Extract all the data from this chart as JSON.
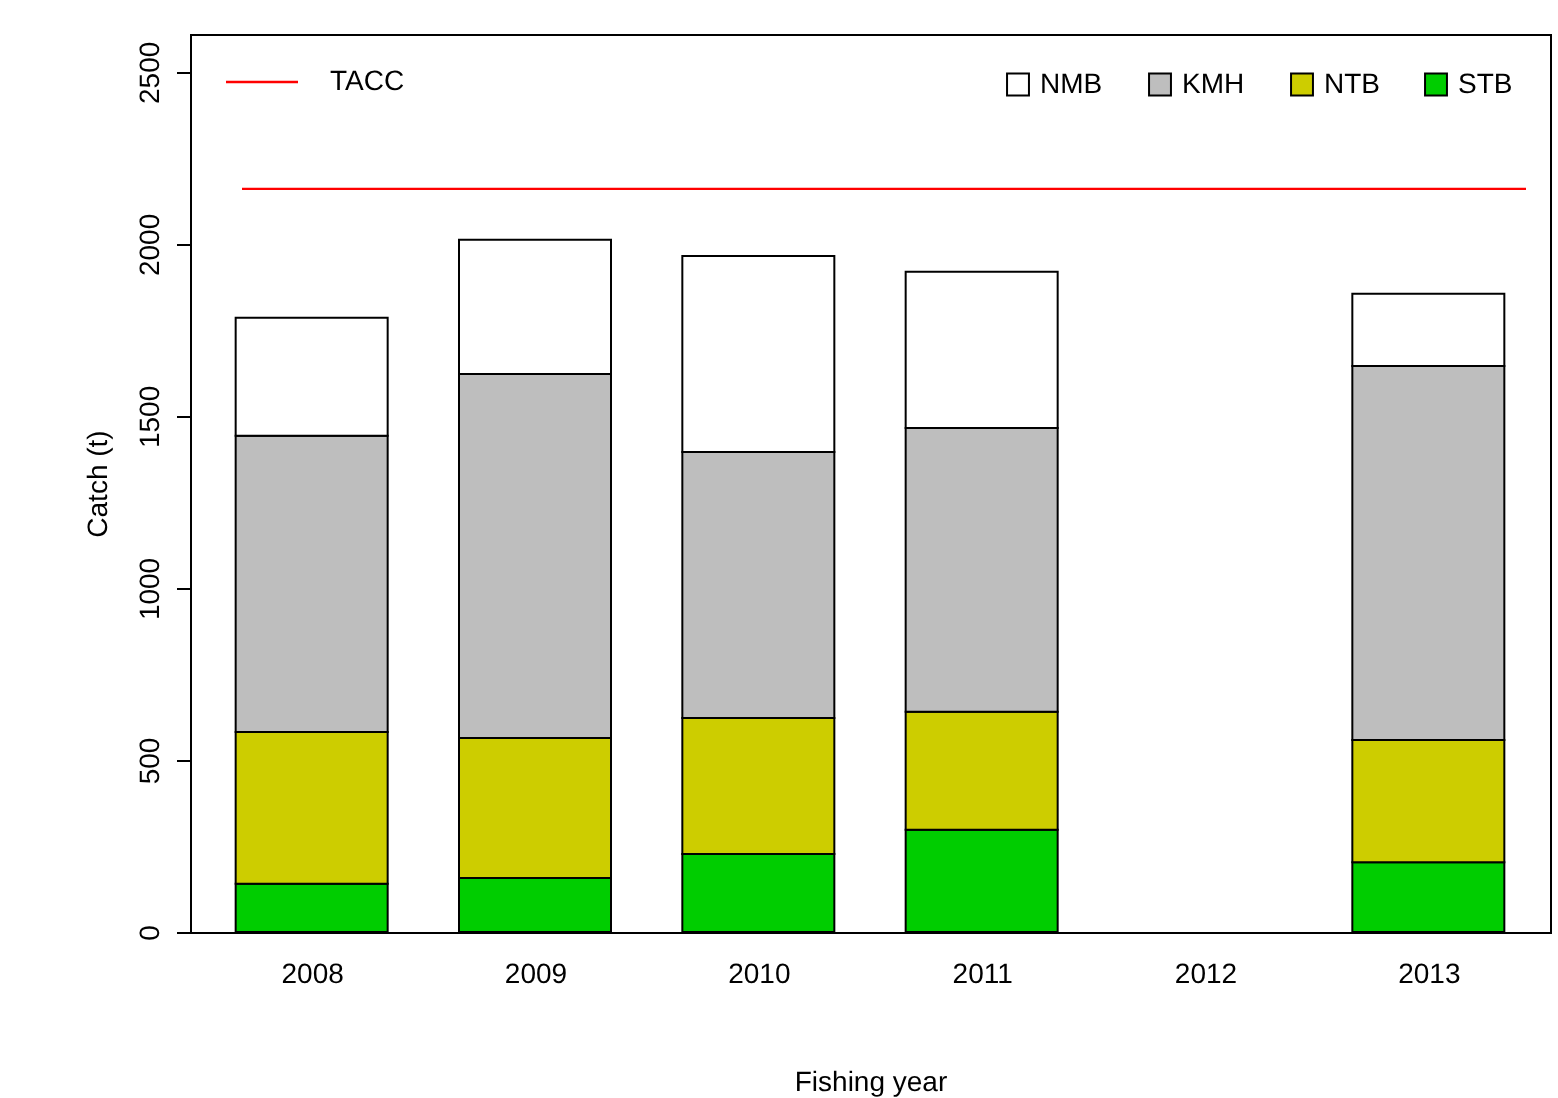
{
  "chart_data": {
    "type": "bar",
    "stacked": true,
    "xlabel": "Fishing year",
    "ylabel": "Catch (t)",
    "categories": [
      "2008",
      "2009",
      "2010",
      "2011",
      "2012",
      "2013"
    ],
    "series": [
      {
        "name": "STB",
        "color": "#00cd00",
        "values": [
          140,
          157,
          227,
          297,
          null,
          203
        ]
      },
      {
        "name": "NTB",
        "color": "#cdcd00",
        "values": [
          441,
          407,
          395,
          343,
          null,
          355
        ]
      },
      {
        "name": "KMH",
        "color": "#bebebe",
        "values": [
          861,
          1058,
          773,
          825,
          null,
          1087
        ]
      },
      {
        "name": "NMB",
        "color": "#ffffff",
        "values": [
          343,
          390,
          570,
          454,
          null,
          210
        ]
      }
    ],
    "ylim": [
      0,
      2610
    ],
    "yticks": [
      0,
      500,
      1000,
      1500,
      2000,
      2500
    ],
    "ref_lines": [
      {
        "axis": "y",
        "value": 2160,
        "label": "TACC",
        "color": "#ff0000"
      }
    ],
    "legend": "top right",
    "grid": false
  }
}
